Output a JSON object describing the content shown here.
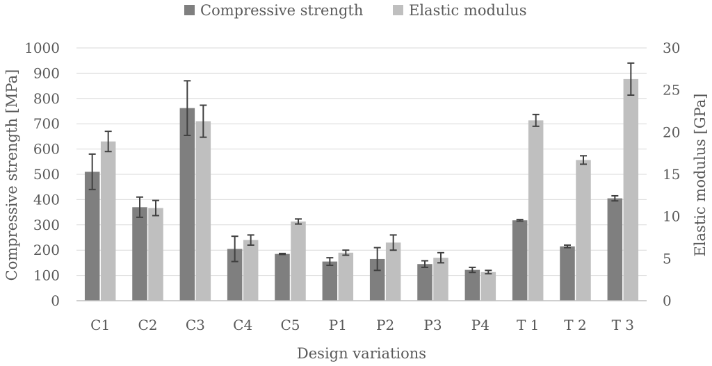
{
  "chart_data": {
    "type": "bar",
    "xlabel": "Design variations",
    "ylabel": "Compressive strength [MPa]",
    "y2label": "Elastic modulus [GPa]",
    "ylim": [
      0,
      1000
    ],
    "y2lim": [
      0,
      30
    ],
    "yticks": [
      "0",
      "100",
      "200",
      "300",
      "400",
      "500",
      "600",
      "700",
      "800",
      "900",
      "1000"
    ],
    "y2ticks": [
      "0",
      "5",
      "10",
      "15",
      "20",
      "25",
      "30"
    ],
    "grid": true,
    "legend_position": "top",
    "categories": [
      "C1",
      "C2",
      "C3",
      "C4",
      "C5",
      "P1",
      "P2",
      "P3",
      "P4",
      "T 1",
      "T 2",
      "T 3"
    ],
    "series": [
      {
        "name": "Compressive strength",
        "axis": "left",
        "color": "#7f7f7f",
        "values": [
          510,
          370,
          762,
          205,
          185,
          155,
          165,
          145,
          122,
          318,
          215,
          405
        ],
        "errors": [
          70,
          40,
          108,
          50,
          2,
          15,
          45,
          13,
          10,
          3,
          5,
          10
        ]
      },
      {
        "name": "Elastic modulus",
        "axis": "right",
        "color": "#bfbfbf",
        "values": [
          18.9,
          11.0,
          21.3,
          7.2,
          9.4,
          5.7,
          6.9,
          5.1,
          3.4,
          21.4,
          16.7,
          26.3
        ],
        "errors": [
          1.2,
          0.9,
          1.9,
          0.6,
          0.3,
          0.3,
          0.9,
          0.6,
          0.2,
          0.7,
          0.5,
          1.9
        ]
      }
    ]
  }
}
